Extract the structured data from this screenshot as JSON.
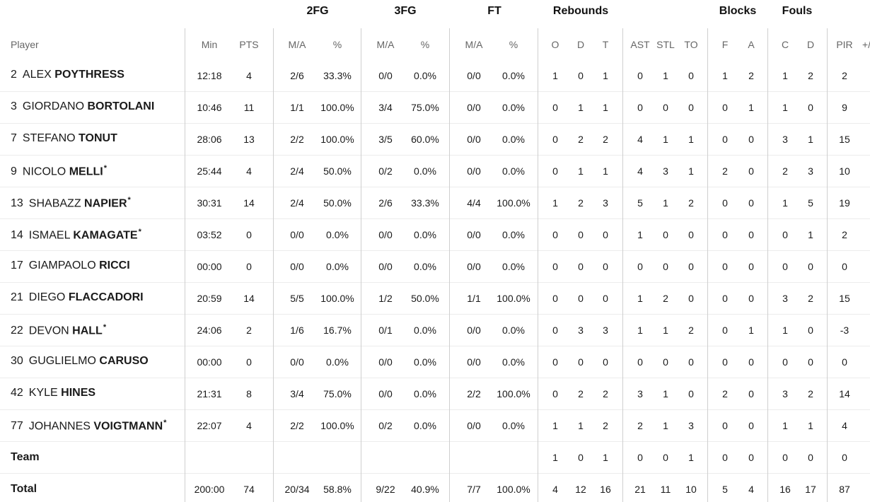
{
  "group_headers": {
    "fg2": "2FG",
    "fg3": "3FG",
    "ft": "FT",
    "rebounds": "Rebounds",
    "blocks": "Blocks",
    "fouls": "Fouls"
  },
  "col_headers": {
    "player": "Player",
    "min": "Min",
    "pts": "PTS",
    "fg2_ma": "M/A",
    "fg2_pct": "%",
    "fg3_ma": "M/A",
    "fg3_pct": "%",
    "ft_ma": "M/A",
    "ft_pct": "%",
    "reb_o": "O",
    "reb_d": "D",
    "reb_t": "T",
    "ast": "AST",
    "stl": "STL",
    "to": "TO",
    "blk_f": "F",
    "blk_a": "A",
    "foul_c": "C",
    "foul_d": "D",
    "pir": "PIR",
    "pm": "+/"
  },
  "players": [
    {
      "num": "2",
      "first": "ALEX",
      "last": "POYTHRESS",
      "star": "",
      "min": "12:18",
      "pts": "4",
      "fg2_ma": "2/6",
      "fg2_pct": "33.3%",
      "fg3_ma": "0/0",
      "fg3_pct": "0.0%",
      "ft_ma": "0/0",
      "ft_pct": "0.0%",
      "reb_o": "1",
      "reb_d": "0",
      "reb_t": "1",
      "ast": "0",
      "stl": "1",
      "to": "0",
      "blk_f": "1",
      "blk_a": "2",
      "foul_c": "1",
      "foul_d": "2",
      "pir": "2"
    },
    {
      "num": "3",
      "first": "GIORDANO",
      "last": "BORTOLANI",
      "star": "",
      "min": "10:46",
      "pts": "11",
      "fg2_ma": "1/1",
      "fg2_pct": "100.0%",
      "fg3_ma": "3/4",
      "fg3_pct": "75.0%",
      "ft_ma": "0/0",
      "ft_pct": "0.0%",
      "reb_o": "0",
      "reb_d": "1",
      "reb_t": "1",
      "ast": "0",
      "stl": "0",
      "to": "0",
      "blk_f": "0",
      "blk_a": "1",
      "foul_c": "1",
      "foul_d": "0",
      "pir": "9"
    },
    {
      "num": "7",
      "first": "STEFANO",
      "last": "TONUT",
      "star": "",
      "min": "28:06",
      "pts": "13",
      "fg2_ma": "2/2",
      "fg2_pct": "100.0%",
      "fg3_ma": "3/5",
      "fg3_pct": "60.0%",
      "ft_ma": "0/0",
      "ft_pct": "0.0%",
      "reb_o": "0",
      "reb_d": "2",
      "reb_t": "2",
      "ast": "4",
      "stl": "1",
      "to": "1",
      "blk_f": "0",
      "blk_a": "0",
      "foul_c": "3",
      "foul_d": "1",
      "pir": "15"
    },
    {
      "num": "9",
      "first": "NICOLO",
      "last": "MELLI",
      "star": "*",
      "min": "25:44",
      "pts": "4",
      "fg2_ma": "2/4",
      "fg2_pct": "50.0%",
      "fg3_ma": "0/2",
      "fg3_pct": "0.0%",
      "ft_ma": "0/0",
      "ft_pct": "0.0%",
      "reb_o": "0",
      "reb_d": "1",
      "reb_t": "1",
      "ast": "4",
      "stl": "3",
      "to": "1",
      "blk_f": "2",
      "blk_a": "0",
      "foul_c": "2",
      "foul_d": "3",
      "pir": "10"
    },
    {
      "num": "13",
      "first": "SHABAZZ",
      "last": "NAPIER",
      "star": "*",
      "min": "30:31",
      "pts": "14",
      "fg2_ma": "2/4",
      "fg2_pct": "50.0%",
      "fg3_ma": "2/6",
      "fg3_pct": "33.3%",
      "ft_ma": "4/4",
      "ft_pct": "100.0%",
      "reb_o": "1",
      "reb_d": "2",
      "reb_t": "3",
      "ast": "5",
      "stl": "1",
      "to": "2",
      "blk_f": "0",
      "blk_a": "0",
      "foul_c": "1",
      "foul_d": "5",
      "pir": "19"
    },
    {
      "num": "14",
      "first": "ISMAEL",
      "last": "KAMAGATE",
      "star": "*",
      "min": "03:52",
      "pts": "0",
      "fg2_ma": "0/0",
      "fg2_pct": "0.0%",
      "fg3_ma": "0/0",
      "fg3_pct": "0.0%",
      "ft_ma": "0/0",
      "ft_pct": "0.0%",
      "reb_o": "0",
      "reb_d": "0",
      "reb_t": "0",
      "ast": "1",
      "stl": "0",
      "to": "0",
      "blk_f": "0",
      "blk_a": "0",
      "foul_c": "0",
      "foul_d": "1",
      "pir": "2"
    },
    {
      "num": "17",
      "first": "GIAMPAOLO",
      "last": "RICCI",
      "star": "",
      "min": "00:00",
      "pts": "0",
      "fg2_ma": "0/0",
      "fg2_pct": "0.0%",
      "fg3_ma": "0/0",
      "fg3_pct": "0.0%",
      "ft_ma": "0/0",
      "ft_pct": "0.0%",
      "reb_o": "0",
      "reb_d": "0",
      "reb_t": "0",
      "ast": "0",
      "stl": "0",
      "to": "0",
      "blk_f": "0",
      "blk_a": "0",
      "foul_c": "0",
      "foul_d": "0",
      "pir": "0"
    },
    {
      "num": "21",
      "first": "DIEGO",
      "last": "FLACCADORI",
      "star": "",
      "min": "20:59",
      "pts": "14",
      "fg2_ma": "5/5",
      "fg2_pct": "100.0%",
      "fg3_ma": "1/2",
      "fg3_pct": "50.0%",
      "ft_ma": "1/1",
      "ft_pct": "100.0%",
      "reb_o": "0",
      "reb_d": "0",
      "reb_t": "0",
      "ast": "1",
      "stl": "2",
      "to": "0",
      "blk_f": "0",
      "blk_a": "0",
      "foul_c": "3",
      "foul_d": "2",
      "pir": "15"
    },
    {
      "num": "22",
      "first": "DEVON",
      "last": "HALL",
      "star": "*",
      "min": "24:06",
      "pts": "2",
      "fg2_ma": "1/6",
      "fg2_pct": "16.7%",
      "fg3_ma": "0/1",
      "fg3_pct": "0.0%",
      "ft_ma": "0/0",
      "ft_pct": "0.0%",
      "reb_o": "0",
      "reb_d": "3",
      "reb_t": "3",
      "ast": "1",
      "stl": "1",
      "to": "2",
      "blk_f": "0",
      "blk_a": "1",
      "foul_c": "1",
      "foul_d": "0",
      "pir": "-3"
    },
    {
      "num": "30",
      "first": "GUGLIELMO",
      "last": "CARUSO",
      "star": "",
      "min": "00:00",
      "pts": "0",
      "fg2_ma": "0/0",
      "fg2_pct": "0.0%",
      "fg3_ma": "0/0",
      "fg3_pct": "0.0%",
      "ft_ma": "0/0",
      "ft_pct": "0.0%",
      "reb_o": "0",
      "reb_d": "0",
      "reb_t": "0",
      "ast": "0",
      "stl": "0",
      "to": "0",
      "blk_f": "0",
      "blk_a": "0",
      "foul_c": "0",
      "foul_d": "0",
      "pir": "0"
    },
    {
      "num": "42",
      "first": "KYLE",
      "last": "HINES",
      "star": "",
      "min": "21:31",
      "pts": "8",
      "fg2_ma": "3/4",
      "fg2_pct": "75.0%",
      "fg3_ma": "0/0",
      "fg3_pct": "0.0%",
      "ft_ma": "2/2",
      "ft_pct": "100.0%",
      "reb_o": "0",
      "reb_d": "2",
      "reb_t": "2",
      "ast": "3",
      "stl": "1",
      "to": "0",
      "blk_f": "2",
      "blk_a": "0",
      "foul_c": "3",
      "foul_d": "2",
      "pir": "14"
    },
    {
      "num": "77",
      "first": "JOHANNES",
      "last": "VOIGTMANN",
      "star": "*",
      "min": "22:07",
      "pts": "4",
      "fg2_ma": "2/2",
      "fg2_pct": "100.0%",
      "fg3_ma": "0/2",
      "fg3_pct": "0.0%",
      "ft_ma": "0/0",
      "ft_pct": "0.0%",
      "reb_o": "1",
      "reb_d": "1",
      "reb_t": "2",
      "ast": "2",
      "stl": "1",
      "to": "3",
      "blk_f": "0",
      "blk_a": "0",
      "foul_c": "1",
      "foul_d": "1",
      "pir": "4"
    }
  ],
  "team_row": {
    "label": "Team",
    "reb_o": "1",
    "reb_d": "0",
    "reb_t": "1",
    "ast": "0",
    "stl": "0",
    "to": "1",
    "blk_f": "0",
    "blk_a": "0",
    "foul_c": "0",
    "foul_d": "0",
    "pir": "0"
  },
  "total_row": {
    "label": "Total",
    "min": "200:00",
    "pts": "74",
    "fg2_ma": "20/34",
    "fg2_pct": "58.8%",
    "fg3_ma": "9/22",
    "fg3_pct": "40.9%",
    "ft_ma": "7/7",
    "ft_pct": "100.0%",
    "reb_o": "4",
    "reb_d": "12",
    "reb_t": "16",
    "ast": "21",
    "stl": "11",
    "to": "10",
    "blk_f": "5",
    "blk_a": "4",
    "foul_c": "16",
    "foul_d": "17",
    "pir": "87"
  }
}
